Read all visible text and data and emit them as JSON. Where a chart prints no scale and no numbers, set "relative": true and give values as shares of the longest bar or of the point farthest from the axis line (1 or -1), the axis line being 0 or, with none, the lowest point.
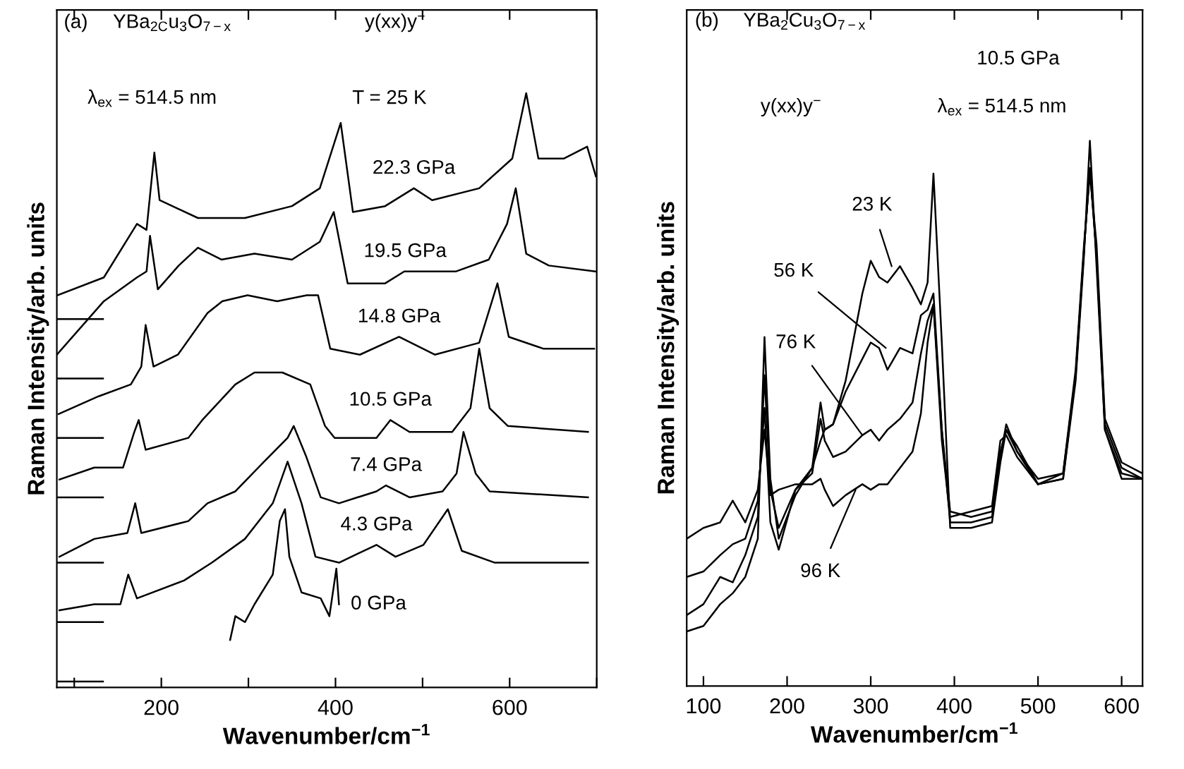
{
  "chart_data": [
    {
      "type": "line",
      "relative": true,
      "xlabel": "Wavenumber/cm$^{−1}$",
      "ylabel": "Raman Intensity/arb. units",
      "xlim": [
        80,
        700
      ],
      "xticks": [
        {
          "value": 100,
          "label": null
        },
        200,
        {
          "value": 300,
          "label": null
        },
        400,
        {
          "value": 500,
          "label": null
        },
        600,
        {
          "value": 700,
          "label": null
        }
      ],
      "annotations": [
        "(a)",
        "YBa$_{2C}$u$_{3}$O$_{7−x}$",
        "λ$_{ex}$ = 514.5 nm",
        "y(xx)y$^{−}$",
        "T = 25 K",
        {
          "text": "22.3 GPa",
          "x": 490,
          "y": 0.84
        },
        {
          "text": "19.5 GPa",
          "x": 480,
          "y": 0.7
        },
        {
          "text": "14.8 GPa",
          "x": 473,
          "y": 0.59
        },
        {
          "text": "10.5 GPa",
          "x": 463,
          "y": 0.45
        },
        {
          "text": "7.4 GPa",
          "x": 458,
          "y": 0.34
        },
        {
          "text": "4.3 GPa",
          "x": 447,
          "y": 0.24
        },
        {
          "text": "0 GPa",
          "x": 404,
          "y": 0.14
        }
      ],
      "series": [
        {
          "color": "#000000",
          "x": [
            81,
            134,
            172,
            183,
            192,
            198,
            242,
            296,
            350,
            382,
            406,
            420,
            457,
            490,
            511,
            565,
            603,
            619,
            633,
            662,
            689,
            699
          ],
          "values": [
            0.66,
            0.69,
            0.78,
            0.77,
            0.9,
            0.82,
            0.79,
            0.79,
            0.81,
            0.84,
            0.95,
            0.8,
            0.81,
            0.84,
            0.82,
            0.84,
            0.89,
            1.0,
            0.89,
            0.89,
            0.91,
            0.86
          ]
        },
        {
          "color": "#000000",
          "x": [
            80,
            134,
            172,
            183,
            187,
            196,
            220,
            242,
            269,
            307,
            350,
            382,
            398,
            414,
            457,
            479,
            490,
            538,
            576,
            597,
            607,
            619,
            645,
            699
          ],
          "values": [
            0.56,
            0.65,
            0.69,
            0.7,
            0.76,
            0.67,
            0.71,
            0.74,
            0.72,
            0.73,
            0.72,
            0.75,
            0.8,
            0.68,
            0.68,
            0.7,
            0.7,
            0.7,
            0.72,
            0.78,
            0.84,
            0.73,
            0.71,
            0.7
          ]
        },
        {
          "color": "#000000",
          "x": [
            82,
            128,
            165,
            177,
            182,
            191,
            219,
            253,
            270,
            299,
            333,
            367,
            380,
            394,
            428,
            473,
            514,
            565,
            586,
            599,
            639,
            697
          ],
          "values": [
            0.46,
            0.49,
            0.51,
            0.54,
            0.61,
            0.54,
            0.56,
            0.63,
            0.65,
            0.66,
            0.65,
            0.66,
            0.66,
            0.57,
            0.56,
            0.59,
            0.56,
            0.58,
            0.68,
            0.59,
            0.57,
            0.57
          ]
        },
        {
          "color": "#000000",
          "x": [
            83,
            123,
            156,
            169,
            174,
            182,
            231,
            247,
            285,
            307,
            339,
            371,
            388,
            399,
            447,
            463,
            485,
            534,
            555,
            565,
            577,
            598,
            690
          ],
          "values": [
            0.35,
            0.37,
            0.37,
            0.43,
            0.45,
            0.4,
            0.42,
            0.45,
            0.51,
            0.53,
            0.53,
            0.51,
            0.44,
            0.42,
            0.42,
            0.45,
            0.43,
            0.43,
            0.47,
            0.57,
            0.47,
            0.44,
            0.43
          ]
        },
        {
          "color": "#000000",
          "x": [
            83,
            123,
            161,
            170,
            177,
            231,
            253,
            285,
            318,
            345,
            352,
            366,
            383,
            404,
            447,
            458,
            485,
            523,
            539,
            547,
            561,
            577,
            690
          ],
          "values": [
            0.22,
            0.25,
            0.26,
            0.31,
            0.26,
            0.28,
            0.31,
            0.33,
            0.38,
            0.42,
            0.44,
            0.39,
            0.32,
            0.31,
            0.33,
            0.34,
            0.32,
            0.33,
            0.36,
            0.43,
            0.36,
            0.33,
            0.32
          ]
        },
        {
          "color": "#000000",
          "x": [
            83,
            123,
            153,
            162,
            172,
            226,
            258,
            296,
            328,
            345,
            361,
            377,
            404,
            447,
            469,
            501,
            529,
            545,
            583,
            690
          ],
          "values": [
            0.13,
            0.14,
            0.14,
            0.19,
            0.15,
            0.18,
            0.21,
            0.25,
            0.31,
            0.38,
            0.31,
            0.22,
            0.21,
            0.24,
            0.22,
            0.24,
            0.3,
            0.23,
            0.21,
            0.21
          ]
        },
        {
          "color": "#000000",
          "x": [
            279,
            285,
            296,
            307,
            328,
            336,
            342,
            347,
            361,
            383,
            393,
            401,
            404
          ],
          "values": [
            0.08,
            0.12,
            0.11,
            0.14,
            0.19,
            0.28,
            0.3,
            0.22,
            0.16,
            0.15,
            0.12,
            0.2,
            0.14
          ]
        },
        {
          "color": "#000000",
          "x": [
            80,
            133
          ],
          "values": [
            0.62,
            0.62
          ]
        },
        {
          "color": "#000000",
          "x": [
            80,
            133
          ],
          "values": [
            0.52,
            0.52
          ]
        },
        {
          "color": "#000000",
          "x": [
            80,
            133
          ],
          "values": [
            0.42,
            0.42
          ]
        },
        {
          "color": "#000000",
          "x": [
            80,
            133
          ],
          "values": [
            0.32,
            0.32
          ]
        },
        {
          "color": "#000000",
          "x": [
            80,
            133
          ],
          "values": [
            0.21,
            0.21
          ]
        },
        {
          "color": "#000000",
          "x": [
            80,
            133
          ],
          "values": [
            0.11,
            0.11
          ]
        },
        {
          "color": "#000000",
          "x": [
            80,
            133
          ],
          "values": [
            0.01,
            0.01
          ]
        }
      ]
    },
    {
      "type": "line",
      "relative": true,
      "xlabel": "Wavenumber/cm$^{−1}$",
      "ylabel": "Raman Intensity/arb. units",
      "xlim": [
        80,
        625
      ],
      "xticks": [
        100,
        200,
        300,
        400,
        500,
        600
      ],
      "annotations": [
        "(b)",
        "YBa$_{2}$Cu$_{3}$O$_{7−x}$",
        "10.5 GPa",
        "y(xx)y$^{−}$",
        "λ$_{ex}$ = 514.5 nm",
        {
          "text": "23 K",
          "x": 325,
          "y": 0.77
        },
        {
          "text": "56 K",
          "x": 318,
          "y": 0.62
        },
        {
          "text": "76 K",
          "x": 290,
          "y": 0.46
        },
        {
          "text": "96 K",
          "x": 282,
          "y": 0.36
        }
      ],
      "series": [
        {
          "color": "#000000",
          "x": [
            80,
            100,
            120,
            135,
            150,
            165,
            173,
            180,
            190,
            210,
            230,
            240,
            245,
            255,
            270,
            290,
            300,
            310,
            320,
            335,
            350,
            360,
            368,
            375,
            385,
            395,
            420,
            445,
            455,
            462,
            475,
            500,
            530,
            545,
            555,
            562,
            570,
            580,
            600,
            625
          ],
          "values": [
            0.1,
            0.11,
            0.15,
            0.17,
            0.2,
            0.27,
            0.64,
            0.38,
            0.27,
            0.35,
            0.4,
            0.45,
            0.47,
            0.48,
            0.56,
            0.72,
            0.78,
            0.75,
            0.74,
            0.77,
            0.73,
            0.7,
            0.74,
            0.94,
            0.63,
            0.29,
            0.29,
            0.3,
            0.41,
            0.47,
            0.44,
            0.37,
            0.38,
            0.56,
            0.79,
            1.0,
            0.77,
            0.47,
            0.38,
            0.38
          ]
        },
        {
          "color": "#000000",
          "x": [
            80,
            100,
            120,
            135,
            150,
            165,
            173,
            180,
            190,
            210,
            230,
            240,
            245,
            255,
            270,
            290,
            300,
            310,
            320,
            335,
            350,
            360,
            368,
            375,
            385,
            395,
            420,
            445,
            455,
            462,
            475,
            500,
            530,
            545,
            555,
            562,
            570,
            580,
            600,
            625
          ],
          "values": [
            0.13,
            0.15,
            0.2,
            0.19,
            0.24,
            0.31,
            0.57,
            0.36,
            0.29,
            0.36,
            0.4,
            0.52,
            0.47,
            0.48,
            0.54,
            0.6,
            0.63,
            0.62,
            0.58,
            0.62,
            0.61,
            0.68,
            0.69,
            0.72,
            0.47,
            0.3,
            0.3,
            0.31,
            0.42,
            0.48,
            0.43,
            0.37,
            0.38,
            0.57,
            0.8,
            0.95,
            0.79,
            0.47,
            0.39,
            0.38
          ]
        },
        {
          "color": "#000000",
          "x": [
            80,
            100,
            120,
            135,
            150,
            165,
            173,
            180,
            190,
            210,
            230,
            240,
            245,
            255,
            270,
            290,
            300,
            310,
            320,
            335,
            350,
            360,
            368,
            375,
            385,
            395,
            420,
            445,
            455,
            462,
            475,
            500,
            530,
            545,
            555,
            562,
            570,
            580,
            600,
            625
          ],
          "values": [
            0.2,
            0.21,
            0.24,
            0.26,
            0.27,
            0.34,
            0.51,
            0.3,
            0.25,
            0.36,
            0.39,
            0.49,
            0.45,
            0.42,
            0.43,
            0.46,
            0.47,
            0.45,
            0.47,
            0.49,
            0.52,
            0.61,
            0.67,
            0.7,
            0.47,
            0.32,
            0.31,
            0.32,
            0.43,
            0.47,
            0.43,
            0.38,
            0.39,
            0.57,
            0.8,
            0.95,
            0.79,
            0.48,
            0.4,
            0.38
          ]
        },
        {
          "color": "#000000",
          "x": [
            80,
            100,
            120,
            135,
            150,
            165,
            173,
            180,
            190,
            210,
            230,
            240,
            245,
            255,
            270,
            290,
            300,
            310,
            320,
            335,
            350,
            360,
            368,
            375,
            385,
            395,
            420,
            445,
            455,
            462,
            475,
            500,
            530,
            545,
            555,
            562,
            570,
            580,
            600,
            625
          ],
          "values": [
            0.27,
            0.29,
            0.3,
            0.34,
            0.3,
            0.36,
            0.47,
            0.35,
            0.36,
            0.37,
            0.37,
            0.38,
            0.36,
            0.33,
            0.35,
            0.37,
            0.36,
            0.37,
            0.37,
            0.4,
            0.43,
            0.5,
            0.63,
            0.7,
            0.45,
            0.31,
            0.32,
            0.33,
            0.45,
            0.46,
            0.42,
            0.37,
            0.39,
            0.58,
            0.81,
            0.94,
            0.81,
            0.49,
            0.41,
            0.39
          ]
        }
      ]
    }
  ]
}
